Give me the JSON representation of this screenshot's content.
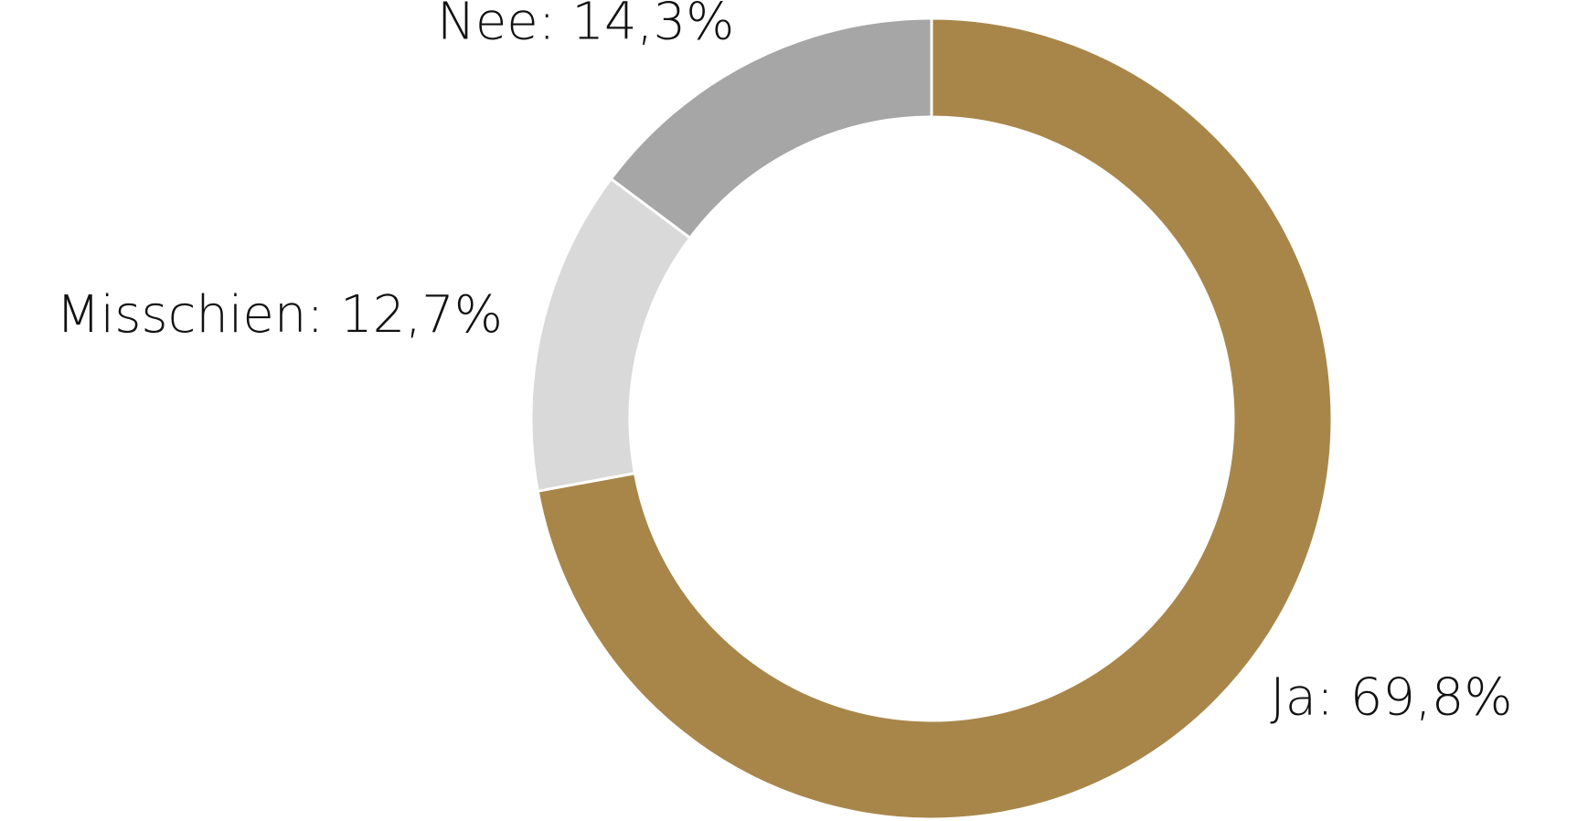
{
  "chart_data": {
    "type": "donut",
    "labels": [
      "Ja: 69,8%",
      "Misschien: 12,7%",
      "Nee: 14,3%"
    ],
    "values": [
      69.8,
      12.7,
      14.3
    ],
    "colors": [
      "#a8864a",
      "#d9d9d9",
      "#a6a6a6"
    ]
  }
}
